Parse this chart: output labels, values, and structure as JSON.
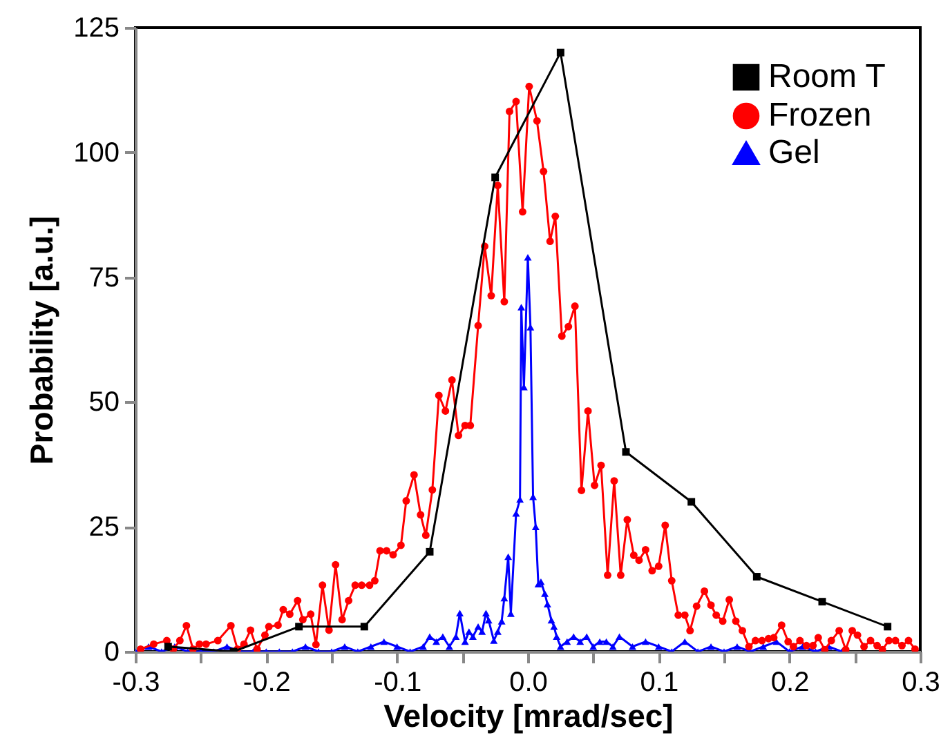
{
  "chart_data": {
    "type": "line",
    "xlabel": "Velocity [mrad/sec]",
    "ylabel": "Probability [a.u.]",
    "xlim": [
      -0.3,
      0.3
    ],
    "ylim": [
      0,
      125
    ],
    "xticks": [
      -0.3,
      {
        "value": -0.25,
        "label": null
      },
      -0.2,
      {
        "value": -0.15,
        "label": null
      },
      -0.1,
      {
        "value": -0.05,
        "label": null
      },
      {
        "value": 0,
        "label": "0.0"
      },
      {
        "value": 0.05,
        "label": null
      },
      0.1,
      {
        "value": 0.15,
        "label": null
      },
      0.2,
      {
        "value": 0.25,
        "label": null
      },
      0.3
    ],
    "yticks": [
      0,
      25,
      50,
      75,
      100,
      125
    ],
    "grid": false,
    "legend": "top right",
    "series": [
      {
        "name": "Room T",
        "color": "#000000",
        "marker": "square",
        "x": [
          -0.275,
          -0.225,
          -0.175,
          -0.125,
          -0.075,
          -0.025,
          0.025,
          0.075,
          0.125,
          0.175,
          0.225,
          0.275
        ],
        "values": [
          1,
          0,
          5,
          5,
          20,
          95,
          120,
          40,
          30,
          15,
          10,
          5
        ]
      },
      {
        "name": "Frozen",
        "color": "#ff0000",
        "marker": "circle",
        "x": [
          -0.296,
          -0.286,
          -0.276,
          -0.271,
          -0.266,
          -0.261,
          -0.256,
          -0.251,
          -0.246,
          -0.237,
          -0.227,
          -0.222,
          -0.217,
          -0.212,
          -0.207,
          -0.201,
          -0.198,
          -0.191,
          -0.187,
          -0.182,
          -0.176,
          -0.172,
          -0.166,
          -0.162,
          -0.157,
          -0.152,
          -0.147,
          -0.142,
          -0.137,
          -0.132,
          -0.127,
          -0.121,
          -0.117,
          -0.113,
          -0.108,
          -0.103,
          -0.097,
          -0.093,
          -0.087,
          -0.082,
          -0.078,
          -0.073,
          -0.068,
          -0.063,
          -0.058,
          -0.053,
          -0.048,
          -0.044,
          -0.038,
          -0.033,
          -0.028,
          -0.023,
          -0.018,
          -0.014,
          -0.009,
          -0.004,
          0.001,
          0.007,
          0.012,
          0.017,
          0.021,
          0.026,
          0.031,
          0.036,
          0.041,
          0.046,
          0.051,
          0.056,
          0.061,
          0.066,
          0.071,
          0.076,
          0.081,
          0.085,
          0.09,
          0.095,
          0.1,
          0.105,
          0.11,
          0.115,
          0.12,
          0.124,
          0.129,
          0.135,
          0.14,
          0.144,
          0.149,
          0.154,
          0.159,
          0.164,
          0.169,
          0.174,
          0.179,
          0.184,
          0.188,
          0.194,
          0.199,
          0.203,
          0.208,
          0.213,
          0.218,
          0.222,
          0.227,
          0.232,
          0.238,
          0.243,
          0.248,
          0.252,
          0.257,
          0.262,
          0.267,
          0.271,
          0.276,
          0.281,
          0.286,
          0.291,
          0.296
        ],
        "values": [
          0.5,
          1.5,
          2.2,
          0.5,
          2.2,
          5.2,
          0.5,
          1.5,
          1.5,
          2.2,
          5.2,
          0.5,
          1.5,
          4.3,
          0.5,
          3.3,
          5,
          5.3,
          8.4,
          7.5,
          10.2,
          6.4,
          7.5,
          1.4,
          13.3,
          4.3,
          17.4,
          6.4,
          10.2,
          13.3,
          13.3,
          13.3,
          14.2,
          20.2,
          20.2,
          19.4,
          21.3,
          30.2,
          35.4,
          27.4,
          23.3,
          32.4,
          51.3,
          48.2,
          54.4,
          43.3,
          45.3,
          45.3,
          65.3,
          81.2,
          71.3,
          93.4,
          70.1,
          108.2,
          110.2,
          88.1,
          113.2,
          106.3,
          96.2,
          82.2,
          87.2,
          63.2,
          65.1,
          69.2,
          32.3,
          48.2,
          33.3,
          37.3,
          15.3,
          34.2,
          15.3,
          26.4,
          19.3,
          18.3,
          20.4,
          16.2,
          17.1,
          25.3,
          14.2,
          7.3,
          7.3,
          4.2,
          9.1,
          12.1,
          9.3,
          7.3,
          6.1,
          10.4,
          6.1,
          4.2,
          1,
          2.2,
          2.2,
          2.6,
          2.8,
          5.3,
          2,
          1,
          2.2,
          1.2,
          1.2,
          2.8,
          0.4,
          2.2,
          4.2,
          0.4,
          4.2,
          3.3,
          1,
          2.2,
          1.2,
          0.4,
          2.2,
          2.2,
          1.2,
          2.2,
          0.5
        ]
      },
      {
        "name": "Gel",
        "color": "#0000ff",
        "marker": "triangle",
        "x": [
          -0.3,
          -0.29,
          -0.28,
          -0.27,
          -0.26,
          -0.25,
          -0.24,
          -0.23,
          -0.22,
          -0.21,
          -0.2,
          -0.19,
          -0.18,
          -0.17,
          -0.16,
          -0.15,
          -0.14,
          -0.13,
          -0.12,
          -0.11,
          -0.1,
          -0.09,
          -0.08,
          -0.075,
          -0.07,
          -0.065,
          -0.06,
          -0.055,
          -0.052,
          -0.048,
          -0.045,
          -0.042,
          -0.038,
          -0.035,
          -0.032,
          -0.03,
          -0.026,
          -0.023,
          -0.02,
          -0.018,
          -0.015,
          -0.013,
          -0.009,
          -0.006,
          -0.005,
          -0.003,
          0,
          0.002,
          0.004,
          0.006,
          0.008,
          0.01,
          0.013,
          0.015,
          0.018,
          0.02,
          0.022,
          0.025,
          0.03,
          0.035,
          0.04,
          0.045,
          0.05,
          0.055,
          0.06,
          0.065,
          0.07,
          0.08,
          0.09,
          0.1,
          0.11,
          0.12,
          0.13,
          0.14,
          0.15,
          0.16,
          0.17,
          0.18,
          0.19,
          0.2,
          0.21,
          0.22,
          0.23,
          0.24
        ],
        "values": [
          0,
          1,
          0,
          1,
          0,
          0,
          0,
          1,
          0,
          0,
          0,
          0,
          0,
          1,
          0,
          0,
          1,
          0,
          1,
          2,
          1,
          0,
          1,
          3,
          2,
          3,
          1,
          3,
          7.7,
          2,
          4,
          3,
          5,
          4,
          7.7,
          6.3,
          2.2,
          4,
          6.1,
          10.7,
          19,
          7.6,
          27.7,
          30.5,
          69,
          53,
          79,
          65,
          31,
          25,
          13.5,
          14,
          11.6,
          9.5,
          6.3,
          5,
          3,
          1,
          2,
          3,
          2,
          3,
          1,
          2,
          2,
          1,
          3,
          1,
          2,
          1,
          0,
          2,
          0,
          1,
          0,
          1,
          0,
          1,
          2,
          0,
          1,
          0,
          1,
          0
        ]
      }
    ]
  }
}
